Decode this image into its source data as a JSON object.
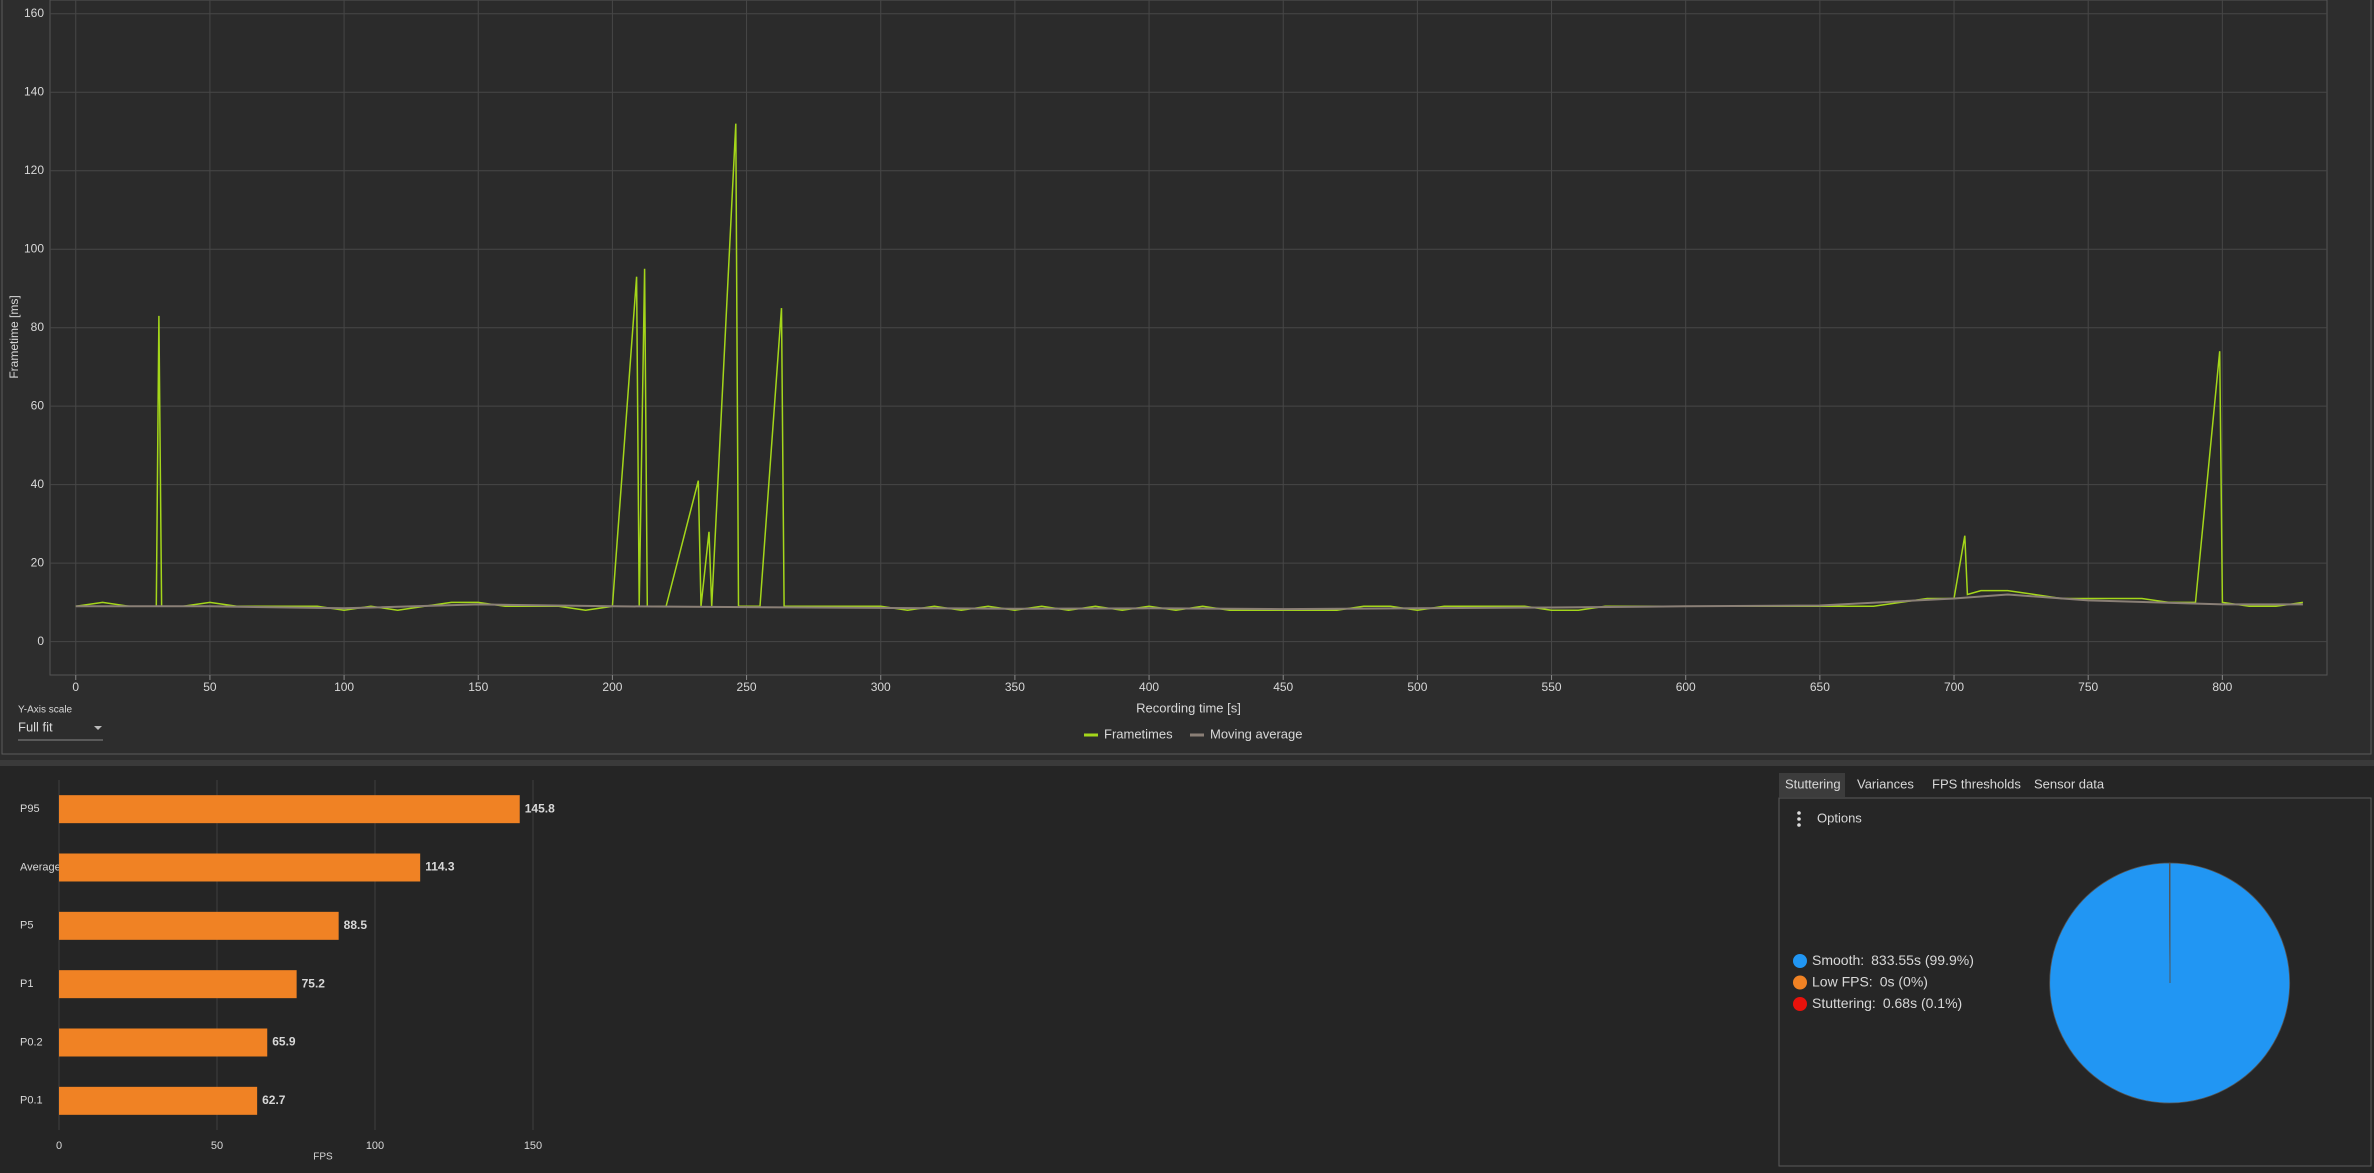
{
  "chart_data": [
    {
      "type": "line",
      "xlabel": "Recording time [s]",
      "ylabel": "Frametime [ms]",
      "xlim": [
        -9.6,
        839
      ],
      "ylim": [
        -8.5,
        163.5
      ],
      "xticks": [
        0,
        50,
        100,
        150,
        200,
        250,
        300,
        350,
        400,
        450,
        500,
        550,
        600,
        650,
        700,
        750,
        800
      ],
      "yticks": [
        0,
        20,
        40,
        60,
        80,
        100,
        120,
        140,
        160
      ],
      "grid": true,
      "series": [
        {
          "name": "Frametimes",
          "color": "#a4d61a",
          "x": [
            0,
            10,
            20,
            30,
            31,
            32,
            40,
            50,
            60,
            70,
            80,
            90,
            100,
            110,
            120,
            130,
            140,
            150,
            160,
            170,
            180,
            190,
            200,
            209,
            210,
            212,
            213,
            220,
            232,
            233,
            236,
            237,
            246,
            247,
            255,
            263,
            264,
            270,
            280,
            290,
            300,
            310,
            320,
            330,
            340,
            350,
            360,
            370,
            380,
            390,
            400,
            410,
            420,
            430,
            440,
            450,
            460,
            470,
            480,
            490,
            500,
            510,
            520,
            530,
            540,
            550,
            560,
            570,
            580,
            590,
            600,
            610,
            620,
            630,
            640,
            650,
            660,
            670,
            680,
            690,
            700,
            704,
            705,
            710,
            720,
            730,
            740,
            750,
            760,
            770,
            780,
            790,
            799,
            800,
            810,
            820,
            830
          ],
          "values": [
            9,
            10,
            9,
            9,
            83,
            9,
            9,
            10,
            9,
            9,
            9,
            9,
            8,
            9,
            8,
            9,
            10,
            10,
            9,
            9,
            9,
            8,
            9,
            93,
            9,
            95,
            9,
            9,
            41,
            9,
            28,
            9,
            132,
            9,
            9,
            85,
            9,
            9,
            9,
            9,
            9,
            8,
            9,
            8,
            9,
            8,
            9,
            8,
            9,
            8,
            9,
            8,
            9,
            8,
            8,
            8,
            8,
            8,
            9,
            9,
            8,
            9,
            9,
            9,
            9,
            8,
            8,
            9,
            9,
            9,
            9,
            9,
            9,
            9,
            9,
            9,
            9,
            9,
            10,
            11,
            11,
            27,
            12,
            13,
            13,
            12,
            11,
            11,
            11,
            11,
            10,
            10,
            74,
            10,
            9,
            9,
            10
          ]
        },
        {
          "name": "Moving average",
          "color": "#8a7f76",
          "x": [
            0,
            50,
            100,
            150,
            200,
            250,
            300,
            350,
            400,
            450,
            500,
            550,
            600,
            650,
            700,
            720,
            750,
            800,
            830
          ],
          "values": [
            9,
            9,
            8.5,
            9.5,
            9,
            8.8,
            8.6,
            8.4,
            8.5,
            8.3,
            8.5,
            8.7,
            9,
            9.2,
            11,
            12,
            10.5,
            9.5,
            9.5
          ]
        }
      ]
    },
    {
      "type": "bar",
      "orientation": "horizontal",
      "xlabel": "FPS",
      "categories": [
        "P95",
        "Average",
        "P5",
        "P1",
        "P0.2",
        "P0.1"
      ],
      "values": [
        145.8,
        114.3,
        88.5,
        75.2,
        65.9,
        62.7
      ],
      "color": "#f08224",
      "xlim": [
        0,
        150
      ],
      "xticks": [
        0,
        50,
        100,
        150
      ],
      "grid": true
    },
    {
      "type": "pie",
      "categories": [
        "Smooth:",
        "Low FPS:",
        "Stuttering:"
      ],
      "values": [
        833.55,
        0,
        0.68
      ],
      "value_labels": [
        "833.55s (99.9%)",
        "0s (0%)",
        "0.68s (0.1%)"
      ],
      "colors": [
        "#2196f3",
        "#f08224",
        "#e8120c"
      ]
    }
  ],
  "ui": {
    "y_axis_scale_label": "Y-Axis scale",
    "y_axis_scale_value": "Full fit",
    "tabs": [
      "Stuttering",
      "Variances",
      "FPS thresholds",
      "Sensor data"
    ],
    "options": "Options"
  }
}
